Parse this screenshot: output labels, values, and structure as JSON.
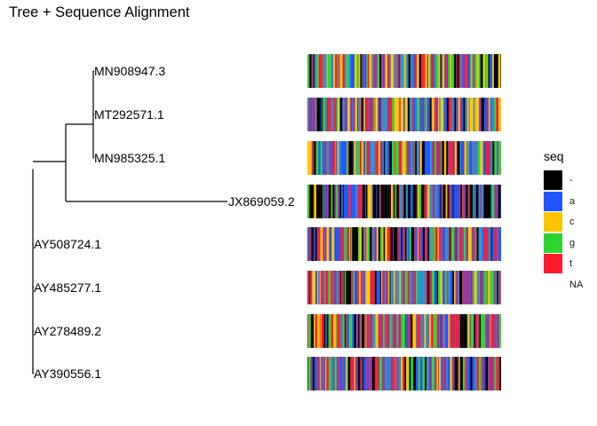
{
  "title": "Tree + Sequence Alignment",
  "tree": {
    "tips": [
      {
        "label": "MN908947.3"
      },
      {
        "label": "MT292571.1"
      },
      {
        "label": "MN985325.1"
      },
      {
        "label": "JX869059.2"
      },
      {
        "label": "AY508724.1"
      },
      {
        "label": "AY485277.1"
      },
      {
        "label": "AY278489.2"
      },
      {
        "label": "AY390556.1"
      }
    ]
  },
  "alignment": {
    "tracks": [
      "MN908947.3",
      "MT292571.1",
      "MN985325.1",
      "JX869059.2",
      "AY508724.1",
      "AY485277.1",
      "AY278489.2",
      "AY390556.1"
    ]
  },
  "legend": {
    "title": "seq",
    "items": [
      {
        "label": "-",
        "color": "#000000"
      },
      {
        "label": "a",
        "color": "#1f55ff"
      },
      {
        "label": "c",
        "color": "#ffc400"
      },
      {
        "label": "g",
        "color": "#2ed52e"
      },
      {
        "label": "t",
        "color": "#ff1a30"
      },
      {
        "label": "NA",
        "color": "#ffffff"
      }
    ]
  }
}
